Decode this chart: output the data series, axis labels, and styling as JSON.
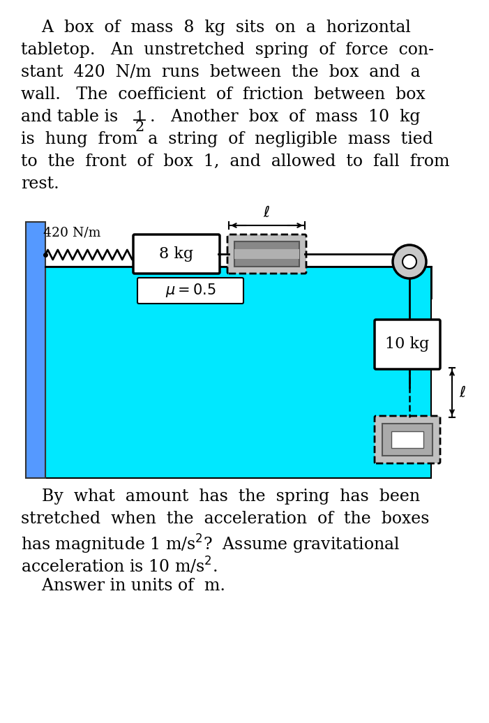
{
  "bg_color": "#ffffff",
  "cyan_color": "#00e8ff",
  "wall_color": "#5599ff",
  "box1_mass": "8 kg",
  "box2_mass": "10 kg",
  "spring_constant": "420 N/m",
  "mu_label": "$\\mu = 0.5$",
  "para1_lines": [
    "    A  box  of  mass  8  kg  sits  on  a  horizontal",
    "tabletop.   An  unstretched  spring  of  force  con-",
    "stant  420  N/m  runs  between  the  box  and  a",
    "wall.   The  coefficient  of  friction  between  box"
  ],
  "para1_frac_prefix": "and table is ",
  "para1_frac_num": "1",
  "para1_frac_den": "2",
  "para1_frac_suffix": ".   Another  box  of  mass  10  kg",
  "para1_lines2": [
    "is  hung  from  a  string  of  negligible  mass  tied",
    "to  the  front  of  box  1,  and  allowed  to  fall  from",
    "rest."
  ],
  "para2_lines": [
    "    By  what  amount  has  the  spring  has  been",
    "stretched  when  the  acceleration  of  the  boxes",
    "has magnitude 1 m/s$^{2}$?  Assume gravitational",
    "acceleration is 10 m/s$^{2}$.",
    "    Answer in units of  m."
  ]
}
